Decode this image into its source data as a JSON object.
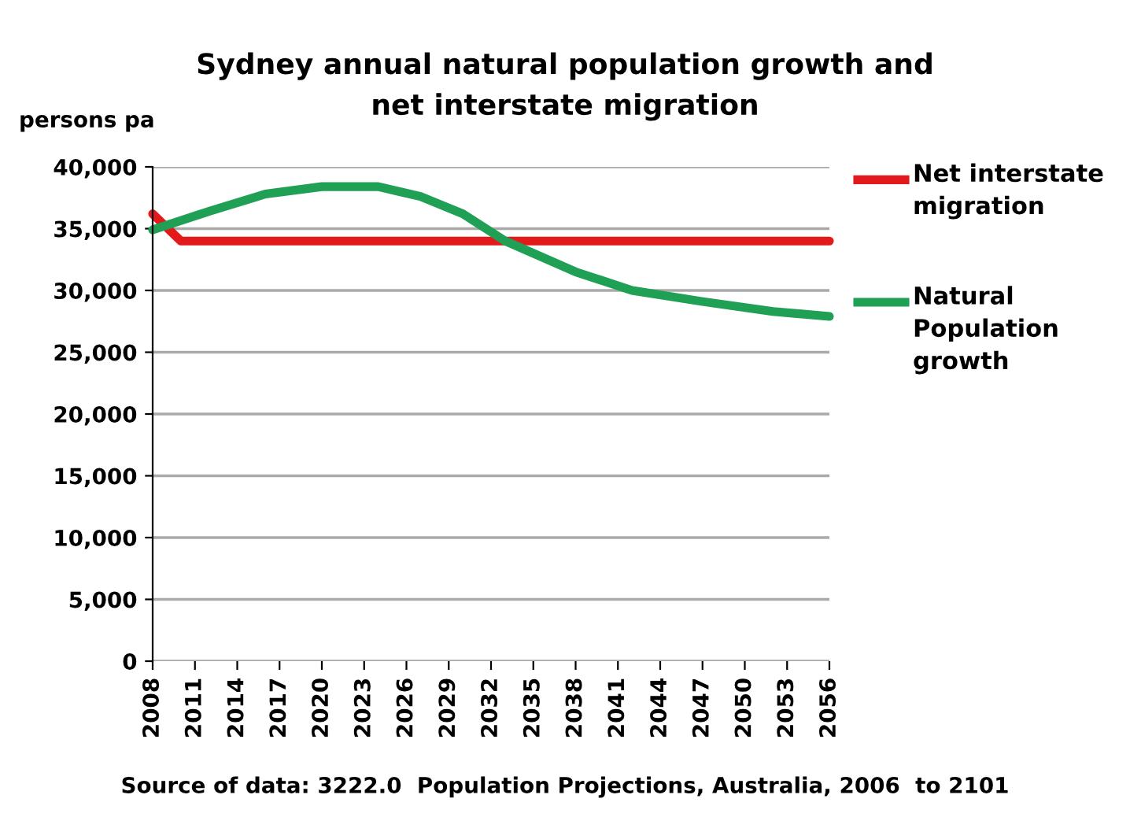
{
  "chart_data": {
    "type": "line",
    "title": "Sydney annual natural population growth and\nnet interstate migration",
    "ylabel": "persons pa",
    "annotations": [
      "Source of data: 3222.0  Population Projections, Australia, 2006  to 2101"
    ],
    "series": [
      {
        "name": "Net interstate migration",
        "color": "#e31a1c",
        "x": [
          2008,
          2010,
          2056
        ],
        "values": [
          36200,
          34000,
          34000
        ]
      },
      {
        "name": "Natural Population growth",
        "color": "#1fa055",
        "x": [
          2008,
          2012,
          2016,
          2020,
          2024,
          2027,
          2030,
          2033,
          2038,
          2042,
          2047,
          2052,
          2056
        ],
        "values": [
          34900,
          36400,
          37800,
          38400,
          38400,
          37600,
          36200,
          34000,
          31500,
          30000,
          29100,
          28300,
          27900
        ]
      }
    ],
    "xlim": [
      2008,
      2056
    ],
    "xticks": [
      2008,
      2011,
      2014,
      2017,
      2020,
      2023,
      2026,
      2029,
      2032,
      2035,
      2038,
      2041,
      2044,
      2047,
      2050,
      2053,
      2056
    ],
    "ylim": [
      0,
      40000
    ],
    "yticks": [
      {
        "value": 0,
        "label": "0"
      },
      {
        "value": 5000,
        "label": "5,000"
      },
      {
        "value": 10000,
        "label": "10,000"
      },
      {
        "value": 15000,
        "label": "15,000"
      },
      {
        "value": 20000,
        "label": "20,000"
      },
      {
        "value": 25000,
        "label": "25,000"
      },
      {
        "value": 30000,
        "label": "30,000"
      },
      {
        "value": 35000,
        "label": "35,000"
      },
      {
        "value": 40000,
        "label": "40,000"
      }
    ],
    "grid": "y",
    "legend": "right",
    "marker": "none",
    "line_style": "solid"
  }
}
